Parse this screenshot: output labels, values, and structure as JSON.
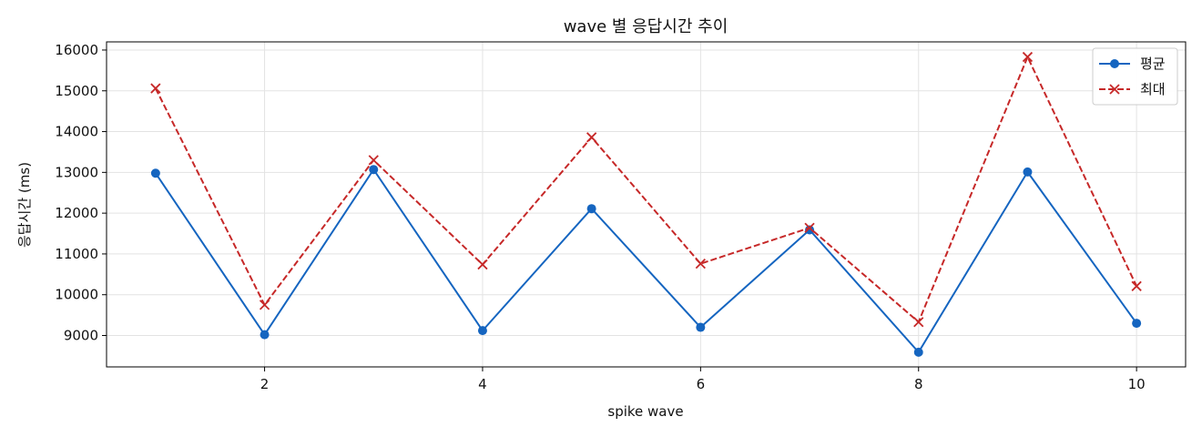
{
  "chart_data": {
    "type": "line",
    "title": "wave 별 응답시간 추이",
    "xlabel": "spike wave",
    "ylabel": "응답시간 (ms)",
    "x": [
      1,
      2,
      3,
      4,
      5,
      6,
      7,
      8,
      9,
      10
    ],
    "xlim": [
      0.55,
      10.45
    ],
    "ylim": [
      8230,
      16200
    ],
    "xticks": [
      2,
      4,
      6,
      8,
      10
    ],
    "yticks": [
      9000,
      10000,
      11000,
      12000,
      13000,
      14000,
      15000,
      16000
    ],
    "grid": true,
    "legend_position": "top-right",
    "series": [
      {
        "name": "평균",
        "values": [
          12980,
          9020,
          13070,
          9120,
          12110,
          9200,
          11590,
          8590,
          13010,
          9300
        ],
        "color": "#1565c0",
        "line_style": "solid",
        "marker": "circle"
      },
      {
        "name": "최대",
        "values": [
          15060,
          9750,
          13300,
          10740,
          13860,
          10760,
          11640,
          9330,
          15830,
          10210
        ],
        "color": "#c62828",
        "line_style": "dashed",
        "marker": "x"
      }
    ]
  }
}
